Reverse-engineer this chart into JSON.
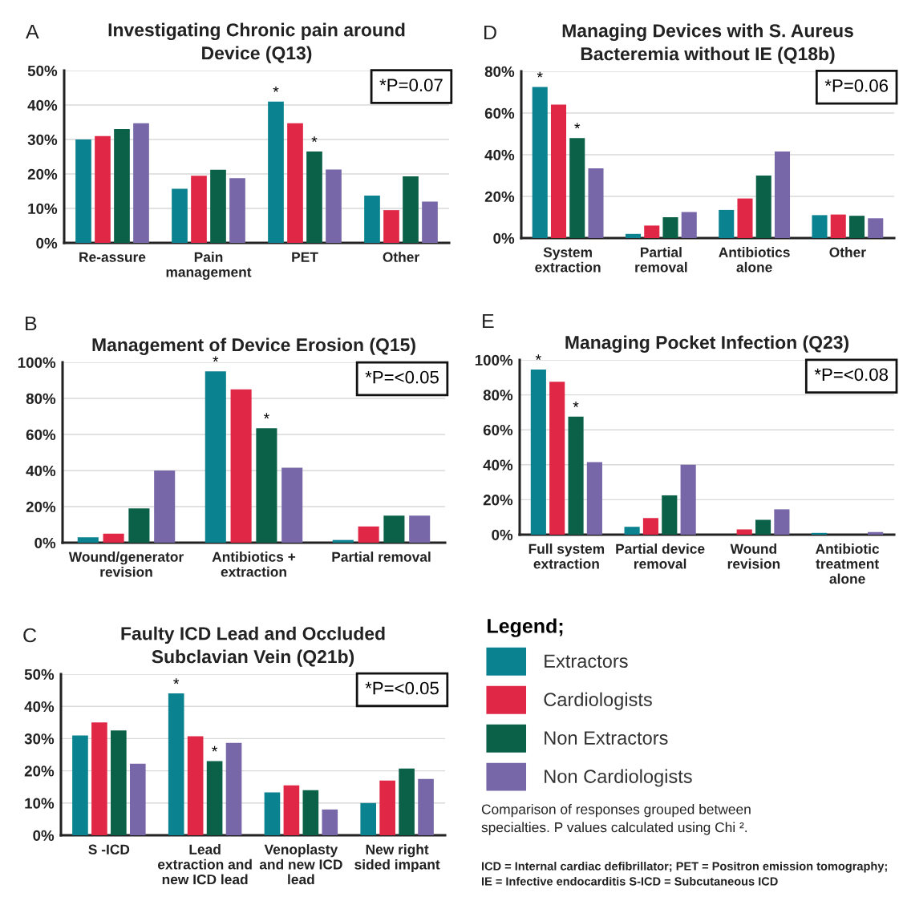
{
  "chart_data": [
    {
      "type": "bar",
      "title": "Investigating Chronic pain around\nDevice (Q13)",
      "categories": [
        "Re-assure",
        "Pain\nmanagement",
        "PET",
        "Other"
      ],
      "series": [
        {
          "name": "Extractors",
          "color": "#0b8290",
          "values": [
            30,
            15.7,
            41,
            13.7
          ],
          "value_labels": [
            null,
            null,
            "*",
            null
          ]
        },
        {
          "name": "Cardiologists",
          "color": "#e02745",
          "values": [
            31,
            19.5,
            34.7,
            9.5
          ]
        },
        {
          "name": "Non Extractors",
          "color": "#0b6148",
          "values": [
            33,
            21.2,
            26.5,
            19.3
          ],
          "value_labels": [
            null,
            null,
            "*",
            null
          ]
        },
        {
          "name": "Non Cardiologists",
          "color": "#7767a8",
          "values": [
            34.7,
            18.8,
            21.3,
            12
          ]
        }
      ],
      "ylim": [
        0,
        50
      ],
      "yticks": [
        {
          "value": 0,
          "label": "0%"
        },
        {
          "value": 10,
          "label": "10%"
        },
        {
          "value": 20,
          "label": "20%"
        },
        {
          "value": 30,
          "label": "30%"
        },
        {
          "value": 40,
          "label": "40%"
        },
        {
          "value": 50,
          "label": "50%"
        }
      ],
      "grid": "y",
      "legend": "bottom right",
      "legend_title": "Legend;",
      "annotations": [
        "A",
        "*P=0.07"
      ]
    },
    {
      "type": "bar",
      "title": "Managing Devices with S. Aureus\nBacteremia without IE (Q18b)",
      "categories": [
        "System\nextraction",
        "Partial\nremoval",
        "Antibiotics\nalone",
        "Other"
      ],
      "series": [
        {
          "color": "#0b8290",
          "values": [
            72.5,
            2,
            13.5,
            11
          ],
          "value_labels": [
            "*",
            null,
            null,
            null
          ]
        },
        {
          "color": "#e02745",
          "values": [
            64,
            6,
            19,
            11.3
          ]
        },
        {
          "color": "#0b6148",
          "values": [
            48,
            10,
            30,
            10.7
          ],
          "value_labels": [
            "*",
            null,
            null,
            null
          ]
        },
        {
          "color": "#7767a8",
          "values": [
            33.5,
            12.5,
            41.5,
            9.5
          ]
        }
      ],
      "ylim": [
        0,
        80
      ],
      "yticks": [
        {
          "value": 0,
          "label": "0%"
        },
        {
          "value": 20,
          "label": "20%"
        },
        {
          "value": 40,
          "label": "40%"
        },
        {
          "value": 60,
          "label": "60%"
        },
        {
          "value": 80,
          "label": "80%"
        }
      ],
      "grid": "y",
      "annotations": [
        "D",
        "*P=0.06"
      ]
    },
    {
      "type": "bar",
      "title": "Management of Device Erosion (Q15)",
      "categories": [
        "Wound/generator\nrevision",
        "Antibiotics +\nextraction",
        "Partial removal"
      ],
      "series": [
        {
          "color": "#0b8290",
          "values": [
            3,
            95,
            1.5
          ],
          "value_labels": [
            null,
            "*",
            null
          ]
        },
        {
          "color": "#e02745",
          "values": [
            5,
            85,
            9
          ]
        },
        {
          "color": "#0b6148",
          "values": [
            19,
            63.5,
            15
          ],
          "value_labels": [
            null,
            "*",
            null
          ]
        },
        {
          "color": "#7767a8",
          "values": [
            40,
            41.5,
            15
          ]
        }
      ],
      "ylim": [
        0,
        100
      ],
      "yticks": [
        {
          "value": 0,
          "label": "0%"
        },
        {
          "value": 20,
          "label": "20%"
        },
        {
          "value": 40,
          "label": "40%"
        },
        {
          "value": 60,
          "label": "60%"
        },
        {
          "value": 80,
          "label": "80%"
        },
        {
          "value": 100,
          "label": "100%"
        }
      ],
      "grid": "y",
      "annotations": [
        "B",
        "*P=<0.05"
      ]
    },
    {
      "type": "bar",
      "title": "Managing Pocket Infection (Q23)",
      "categories": [
        "Full system\nextraction",
        "Partial device\nremoval",
        "Wound\nrevision",
        "Antibiotic\ntreatment\nalone"
      ],
      "series": [
        {
          "color": "#0b8290",
          "values": [
            94.5,
            4.5,
            0,
            1
          ],
          "value_labels": [
            "*",
            null,
            null,
            null
          ]
        },
        {
          "color": "#e02745",
          "values": [
            87.5,
            9.5,
            3,
            0
          ]
        },
        {
          "color": "#0b6148",
          "values": [
            67.5,
            22.5,
            8.5,
            0
          ],
          "value_labels": [
            "*",
            null,
            null,
            null
          ]
        },
        {
          "color": "#7767a8",
          "values": [
            41.5,
            40,
            14.5,
            1.5
          ]
        }
      ],
      "ylim": [
        0,
        100
      ],
      "yticks": [
        {
          "value": 0,
          "label": "0%"
        },
        {
          "value": 20,
          "label": "20%"
        },
        {
          "value": 40,
          "label": "40%"
        },
        {
          "value": 60,
          "label": "60%"
        },
        {
          "value": 80,
          "label": "80%"
        },
        {
          "value": 100,
          "label": "100%"
        }
      ],
      "grid": "y",
      "annotations": [
        "E",
        "*P=<0.08",
        "Comparison of responses grouped between\nspecialties. P values calculated using Chi ².",
        "ICD = Internal cardiac defibrillator; PET = Positron emission tomography;\nIE = Infective endocarditis S-ICD = Subcutaneous ICD"
      ]
    },
    {
      "type": "bar",
      "title": "Faulty ICD Lead and Occluded\nSubclavian Vein (Q21b)",
      "categories": [
        "S -ICD",
        "Lead\nextraction and\nnew ICD lead",
        "Venoplasty\nand new ICD\nlead",
        "New right\nsided impant"
      ],
      "series": [
        {
          "color": "#0b8290",
          "values": [
            31,
            44,
            13.3,
            10
          ],
          "value_labels": [
            null,
            "*",
            null,
            null
          ]
        },
        {
          "color": "#e02745",
          "values": [
            35,
            30.7,
            15.5,
            17
          ]
        },
        {
          "color": "#0b6148",
          "values": [
            32.5,
            23,
            14,
            20.7
          ],
          "value_labels": [
            null,
            "*",
            null,
            null
          ]
        },
        {
          "color": "#7767a8",
          "values": [
            22.2,
            28.7,
            8,
            17.5
          ]
        }
      ],
      "ylim": [
        0,
        50
      ],
      "yticks": [
        {
          "value": 0,
          "label": "0%"
        },
        {
          "value": 10,
          "label": "10%"
        },
        {
          "value": 20,
          "label": "20%"
        },
        {
          "value": 30,
          "label": "30%"
        },
        {
          "value": 40,
          "label": "40%"
        },
        {
          "value": 50,
          "label": "50%"
        }
      ],
      "grid": "y",
      "annotations": [
        "C",
        "*P=<0.05"
      ]
    }
  ]
}
